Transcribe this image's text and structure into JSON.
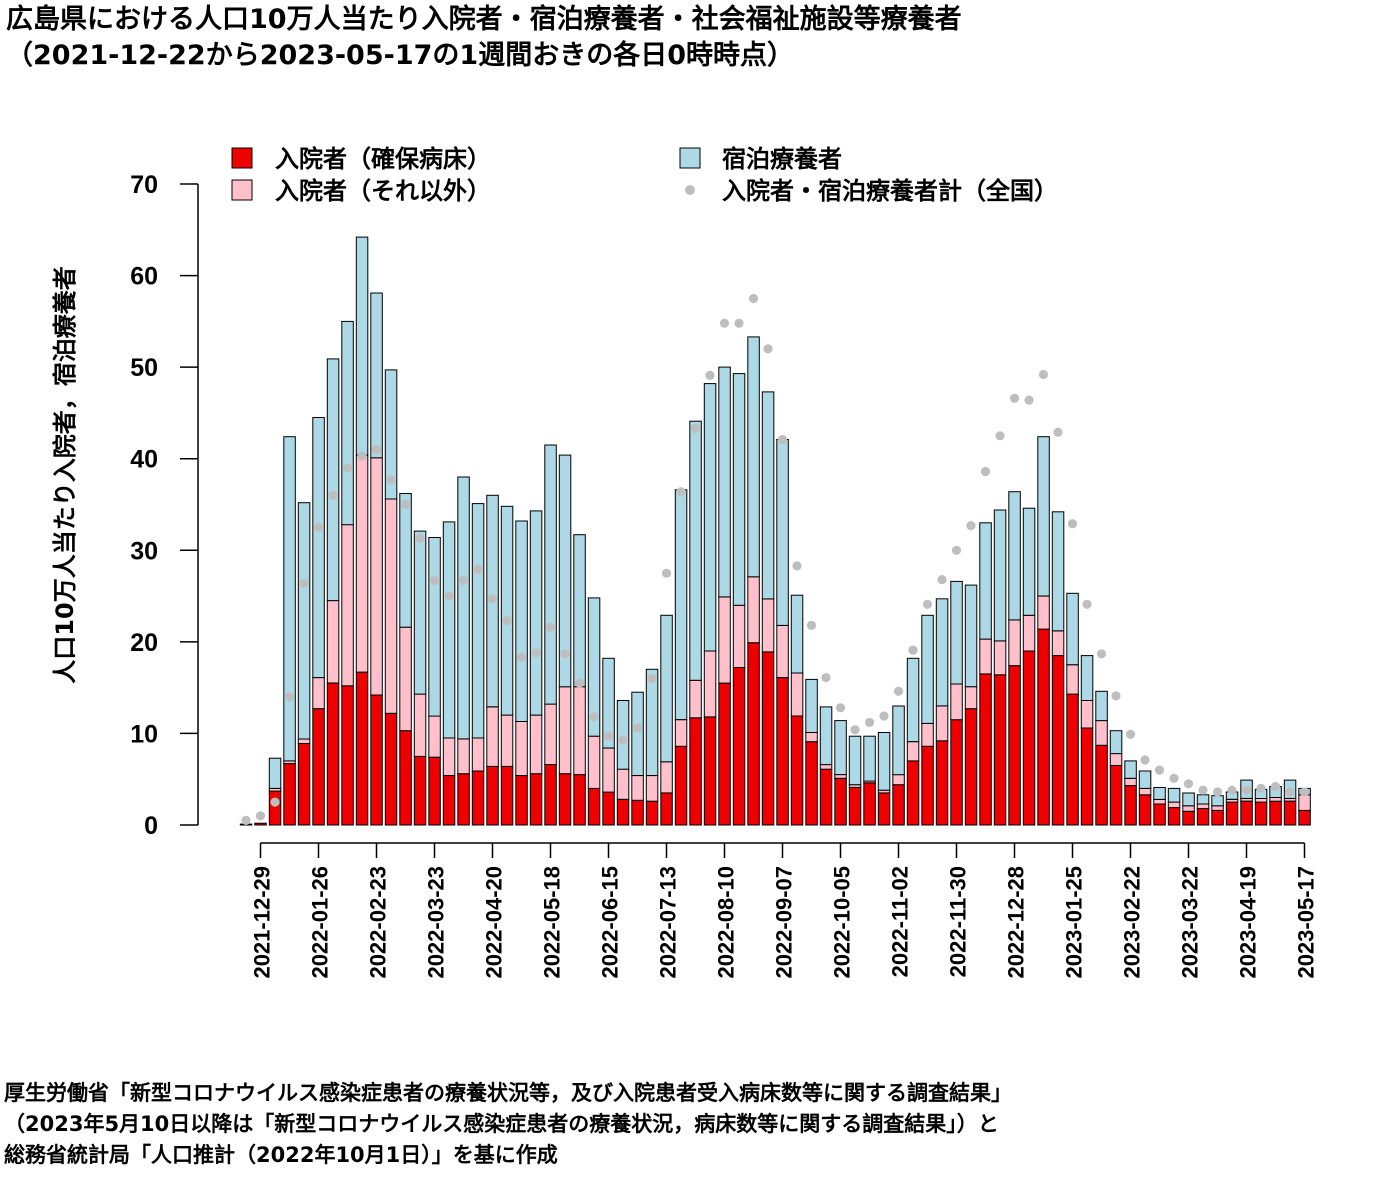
{
  "title": {
    "line1": "広島県における人口10万人当たり入院者・宿泊療養者・社会福祉施設等療養者",
    "line2": "（2021-12-22から2023-05-17の1週間おきの各日0時時点）"
  },
  "source": {
    "line1": "厚生労働省「新型コロナウイルス感染症患者の療養状況等，及び入院患者受入病床数等に関する調査結果」",
    "line2": "（2023年5月10日以降は「新型コロナウイルス感染症患者の療養状況，病床数等に関する調査結果」）と",
    "line3": "総務省統計局「人口推計（2022年10月1日）」を基に作成"
  },
  "colors": {
    "secured": "#ee0000",
    "other": "#ffc0cb",
    "hotel": "#add8e6",
    "national": "#bebebe"
  },
  "chart_data": {
    "type": "bar",
    "stacked": true,
    "ylabel": "人口10万人当たり入院者，宿泊療養者",
    "ylim": [
      0,
      70
    ],
    "yticks": [
      0,
      10,
      20,
      30,
      40,
      50,
      60,
      70
    ],
    "grid": false,
    "legend_position": "top",
    "x_tick_labels": [
      "2021-12-29",
      "2022-01-26",
      "2022-02-23",
      "2022-03-23",
      "2022-04-20",
      "2022-05-18",
      "2022-06-15",
      "2022-07-13",
      "2022-08-10",
      "2022-09-07",
      "2022-10-05",
      "2022-11-02",
      "2022-11-30",
      "2022-12-28",
      "2023-01-25",
      "2023-02-22",
      "2023-03-22",
      "2023-04-19",
      "2023-05-17"
    ],
    "x_start": "2021-12-22",
    "x_end": "2023-05-17",
    "series": [
      {
        "name": "入院者（確保病床）",
        "kind": "bar",
        "values": [
          0.1,
          0.2,
          3.7,
          6.7,
          8.9,
          12.7,
          15.5,
          15.2,
          16.7,
          14.2,
          12.2,
          10.3,
          7.5,
          7.4,
          5.4,
          5.6,
          5.9,
          6.4,
          6.4,
          5.4,
          5.6,
          6.6,
          5.6,
          5.5,
          4.0,
          3.6,
          2.8,
          2.7,
          2.6,
          3.5,
          8.6,
          11.7,
          11.8,
          15.5,
          17.2,
          19.9,
          18.9,
          16.1,
          11.9,
          9.1,
          6.1,
          5.1,
          4.1,
          4.6,
          3.5,
          4.4,
          7.0,
          8.6,
          9.2,
          11.5,
          12.7,
          16.5,
          16.4,
          17.4,
          19.0,
          21.4,
          18.5,
          14.3,
          10.6,
          8.7,
          6.5,
          4.3,
          3.3,
          2.3,
          1.9,
          1.5,
          1.8,
          1.6,
          2.5,
          2.6,
          2.5,
          2.6,
          2.6,
          1.6
        ]
      },
      {
        "name": "入院者（それ以外）",
        "kind": "bar",
        "values": [
          0,
          0,
          0.3,
          0.3,
          0.5,
          3.4,
          9.0,
          17.6,
          23.7,
          25.9,
          23.4,
          11.3,
          6.8,
          4.5,
          4.1,
          3.8,
          3.6,
          6.5,
          5.6,
          5.9,
          6.4,
          6.6,
          9.5,
          9.6,
          5.7,
          4.8,
          3.3,
          2.7,
          2.8,
          3.4,
          2.9,
          4.1,
          7.2,
          9.4,
          6.8,
          7.2,
          5.8,
          5.7,
          4.7,
          1.0,
          0.5,
          0.4,
          0.3,
          0.2,
          0.3,
          1.1,
          2.1,
          2.5,
          3.8,
          3.9,
          2.4,
          3.8,
          3.7,
          5.0,
          3.9,
          3.6,
          2.7,
          3.2,
          3.0,
          2.7,
          1.3,
          0.8,
          0.7,
          0.5,
          0.6,
          0.6,
          0.5,
          0.5,
          0.3,
          0.3,
          0.4,
          0.4,
          0.3,
          1.7
        ]
      },
      {
        "name": "宿泊療養者",
        "kind": "bar",
        "values": [
          0,
          0,
          3.3,
          35.4,
          25.8,
          28.4,
          26.4,
          22.2,
          23.8,
          18.0,
          14.1,
          14.6,
          17.8,
          19.5,
          23.6,
          28.6,
          25.6,
          23.1,
          22.8,
          21.9,
          22.3,
          28.3,
          25.3,
          16.6,
          15.1,
          9.8,
          7.5,
          9.1,
          11.6,
          16.0,
          25.1,
          28.3,
          29.2,
          25.1,
          25.3,
          26.2,
          22.6,
          20.3,
          8.5,
          5.8,
          6.3,
          5.9,
          5.3,
          4.9,
          6.3,
          7.5,
          9.1,
          11.8,
          11.7,
          11.2,
          11.1,
          12.7,
          14.3,
          14.0,
          11.7,
          17.4,
          13.0,
          7.8,
          4.9,
          3.2,
          2.5,
          1.9,
          1.9,
          1.3,
          1.5,
          1.4,
          1.0,
          1.1,
          0.8,
          2.0,
          1.0,
          1.2,
          2.0,
          0.7
        ]
      },
      {
        "name": "入院者・宿泊療養者計（全国）",
        "kind": "point",
        "values": [
          0.5,
          1.0,
          2.5,
          14.0,
          26.4,
          32.5,
          36.0,
          39.0,
          40.3,
          41.0,
          37.7,
          35.0,
          31.3,
          26.7,
          25.0,
          26.7,
          27.9,
          24.7,
          22.3,
          18.3,
          18.8,
          21.6,
          18.7,
          15.5,
          11.8,
          9.7,
          9.3,
          10.6,
          16.0,
          27.5,
          36.4,
          43.3,
          49.1,
          54.8,
          54.8,
          57.5,
          52.0,
          42.1,
          28.3,
          21.8,
          16.1,
          12.8,
          10.4,
          11.2,
          11.9,
          14.6,
          19.1,
          24.1,
          26.8,
          30.0,
          32.7,
          38.6,
          42.5,
          46.6,
          46.4,
          49.2,
          42.9,
          32.9,
          24.1,
          18.7,
          14.1,
          9.9,
          7.1,
          6.0,
          5.1,
          4.5,
          3.8,
          3.6,
          3.8,
          3.8,
          4.0,
          4.2,
          3.6,
          3.6
        ]
      }
    ]
  }
}
